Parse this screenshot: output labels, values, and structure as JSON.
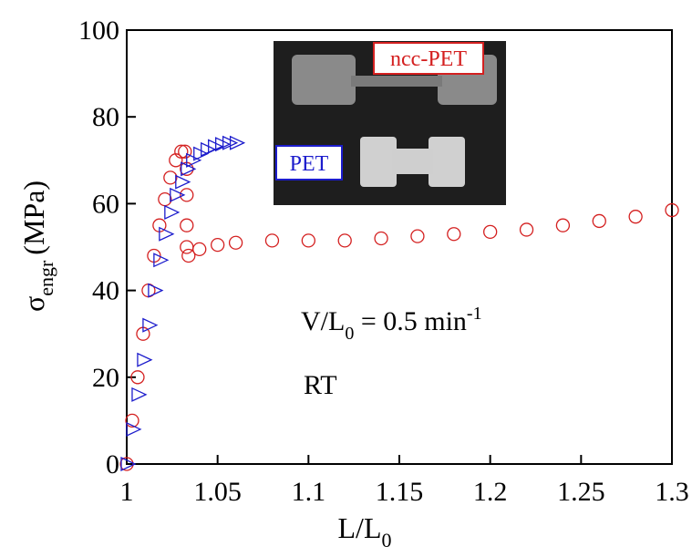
{
  "chart_data": {
    "type": "scatter",
    "x_label": {
      "main": "L/L",
      "subscript": "0"
    },
    "y_label": {
      "symbol": "σ",
      "subscript": "engr",
      "unit": "(MPa)"
    },
    "annotations": [
      {
        "main": "V/L",
        "subscript": "0",
        "rest": " = 0.5 min",
        "superscript": "-1"
      },
      {
        "main": "RT"
      }
    ],
    "inset_labels": [
      "ncc-PET",
      "PET"
    ],
    "xlim": [
      1,
      1.3
    ],
    "ylim": [
      0,
      100
    ],
    "xticks": [
      1,
      1.05,
      1.1,
      1.15,
      1.2,
      1.25,
      1.3
    ],
    "yticks": [
      0,
      20,
      40,
      60,
      80,
      100
    ],
    "series": [
      {
        "name": "ncc-PET",
        "color": "#d42020",
        "marker": "circle",
        "x": [
          1.0,
          1.003,
          1.006,
          1.009,
          1.012,
          1.015,
          1.018,
          1.021,
          1.024,
          1.027,
          1.03,
          1.032,
          1.033,
          1.033,
          1.033,
          1.033,
          1.034,
          1.04,
          1.05,
          1.06,
          1.08,
          1.1,
          1.12,
          1.14,
          1.16,
          1.18,
          1.2,
          1.22,
          1.24,
          1.26,
          1.28,
          1.3
        ],
        "values": [
          0,
          10,
          20,
          30,
          40,
          48,
          55,
          61,
          66,
          70,
          72,
          72,
          68,
          62,
          55,
          50,
          48,
          49.5,
          50.5,
          51,
          51.5,
          51.5,
          51.5,
          52,
          52.5,
          53,
          53.5,
          54,
          55,
          56,
          57,
          58.5
        ]
      },
      {
        "name": "PET",
        "color": "#1c1ccc",
        "marker": "triangle-right",
        "x": [
          1.0,
          1.003,
          1.006,
          1.009,
          1.012,
          1.015,
          1.018,
          1.021,
          1.024,
          1.027,
          1.03,
          1.033,
          1.036,
          1.04,
          1.044,
          1.048,
          1.052,
          1.056,
          1.06
        ],
        "values": [
          0,
          8,
          16,
          24,
          32,
          40,
          47,
          53,
          58,
          62,
          65,
          68,
          70,
          71.5,
          72.5,
          73.2,
          73.7,
          74,
          74
        ]
      }
    ]
  }
}
